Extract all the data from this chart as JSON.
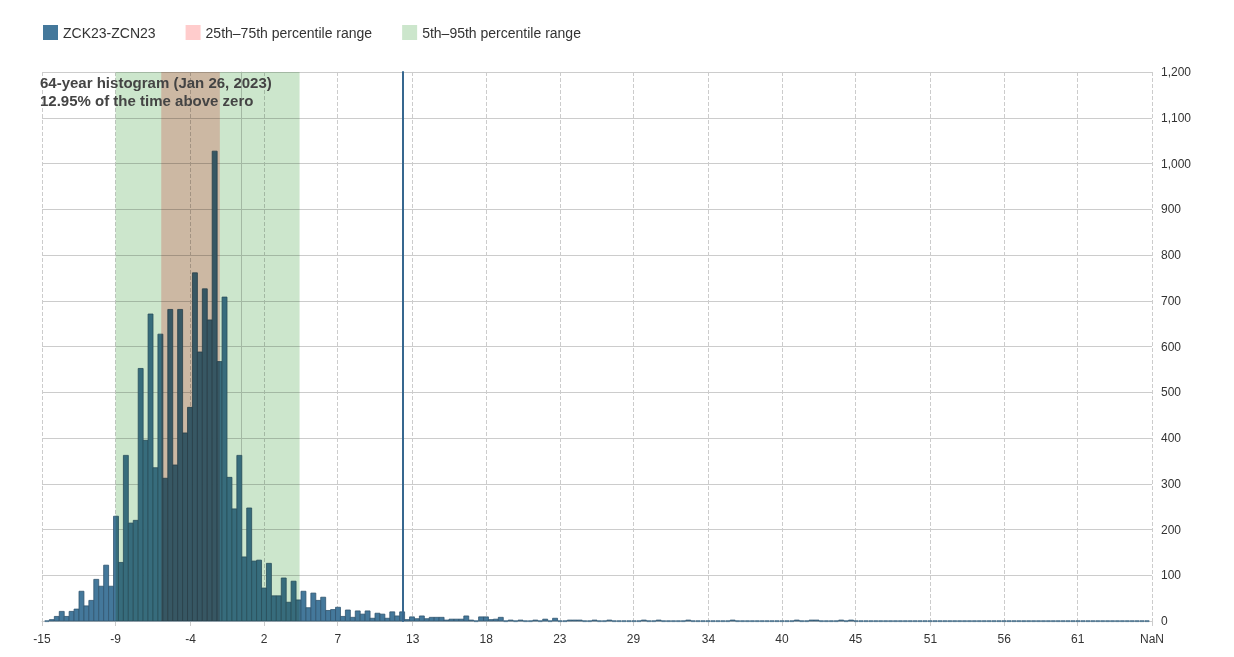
{
  "chart_data": {
    "type": "histogram",
    "title": "64-year histogram (Jan 26, 2023)",
    "subtitle": "12.95% of the time above zero",
    "bins": [
      -14.419,
      -14.057,
      -13.695,
      -13.333,
      -12.971,
      -12.609,
      -12.247,
      -11.885,
      -11.523,
      -11.161,
      -10.799,
      -10.437,
      -10.075,
      -9.713,
      -9.351,
      -8.989,
      -8.627,
      -8.265,
      -7.903,
      -7.541,
      -7.179,
      -6.817,
      -6.455,
      -6.093,
      -5.731,
      -5.369,
      -5.007,
      -4.645,
      -4.283,
      -3.921,
      -3.559,
      -3.197,
      -2.835,
      -2.473,
      -2.111,
      -1.749,
      -1.387,
      -1.025,
      -0.663,
      -0.301,
      0.061,
      0.423,
      0.785,
      1.147,
      1.509,
      1.871,
      2.233,
      2.595,
      2.957,
      3.319,
      3.681,
      4.043,
      4.405,
      4.767,
      5.129,
      5.491,
      5.853,
      6.215,
      6.577,
      6.939,
      7.301,
      7.663,
      8.025,
      8.387,
      8.749,
      9.111,
      9.473,
      9.835,
      10.197,
      10.559,
      10.921,
      11.283,
      11.645,
      12.007,
      12.369,
      12.731,
      13.093,
      13.455,
      13.817,
      14.179,
      14.541,
      14.903,
      15.265,
      15.627,
      15.989,
      16.351,
      16.713,
      17.075,
      17.437,
      17.799,
      18.161,
      18.523,
      18.885,
      19.247,
      19.609,
      19.971,
      20.333,
      20.695,
      21.057,
      21.419,
      21.781,
      22.143,
      22.505,
      22.867,
      23.229,
      23.591,
      23.953,
      24.315,
      24.677,
      25.039,
      25.401,
      25.763,
      26.125,
      26.487,
      26.849,
      27.211,
      27.573,
      27.935,
      28.297,
      28.659,
      29.021,
      29.383,
      29.745,
      30.107,
      30.469,
      30.831,
      31.193,
      31.555,
      31.917,
      32.279,
      32.641,
      33.003,
      33.365,
      33.727,
      34.089,
      34.451,
      34.813,
      35.175,
      35.537,
      35.899,
      36.261,
      36.623,
      36.985,
      37.347,
      37.709,
      38.071,
      38.433,
      38.795,
      39.157,
      39.519,
      39.881,
      40.243,
      40.605,
      40.967,
      41.329,
      41.691,
      42.053,
      42.415,
      42.777,
      43.139,
      43.501,
      43.863,
      44.225,
      44.587,
      44.949,
      45.311,
      45.673,
      46.035,
      46.397,
      46.759,
      47.121,
      47.483,
      47.845,
      48.207,
      48.569,
      48.931,
      49.293,
      49.655,
      50.017,
      50.379,
      50.741,
      51.103,
      51.465,
      51.827,
      52.189,
      52.551,
      52.913,
      53.275,
      53.637,
      53.999,
      54.361,
      54.723,
      55.085,
      55.447,
      55.809,
      56.171,
      56.533,
      56.895,
      57.257,
      57.619,
      57.981,
      58.343,
      58.705,
      59.067,
      59.429,
      59.791,
      60.153,
      60.515,
      60.877,
      61.239,
      61.601,
      61.963,
      62.325,
      62.687,
      63.049,
      63.411,
      63.773,
      64.135,
      64.497,
      64.859,
      65.221,
      65.583,
      65.945,
      66.307,
      66.669
    ],
    "series": [
      {
        "name": "ZCK23-ZCN23",
        "color": "#44789b",
        "values": [
          0,
          3,
          10,
          21,
          10,
          21,
          26,
          65,
          33,
          45,
          91,
          76,
          122,
          76,
          229,
          128,
          362,
          214,
          220,
          552,
          395,
          671,
          335,
          627,
          312,
          681,
          341,
          681,
          411,
          467,
          761,
          588,
          726,
          658,
          1027,
          567,
          708,
          314,
          245,
          362,
          140,
          247,
          131,
          133,
          72,
          126,
          55,
          55,
          94,
          41,
          87,
          46,
          65,
          29,
          61,
          45,
          52,
          23,
          25,
          30,
          10,
          24,
          8,
          22,
          15,
          22,
          6,
          17,
          15,
          6,
          20,
          11,
          20,
          3,
          9,
          5,
          11,
          5,
          8,
          8,
          8,
          2,
          4,
          4,
          4,
          11,
          2,
          0,
          9,
          9,
          3,
          4,
          8,
          0,
          2,
          0,
          2,
          0,
          0,
          2,
          0,
          4,
          0,
          6,
          0,
          0,
          2,
          2,
          2,
          0,
          0,
          2,
          0,
          0,
          2,
          0,
          0,
          0,
          0,
          0,
          0,
          2,
          0,
          0,
          2,
          0,
          0,
          0,
          0,
          0,
          2,
          0,
          0,
          0,
          0,
          0,
          0,
          0,
          0,
          2,
          0,
          0,
          0,
          0,
          0,
          0,
          0,
          0,
          0,
          0,
          0,
          0,
          2,
          0,
          0,
          2,
          2,
          0,
          0,
          0,
          0,
          2,
          0,
          2,
          0,
          0,
          0,
          0,
          0,
          0,
          0,
          0,
          0,
          0,
          0,
          0,
          0,
          0,
          0,
          0,
          0,
          0,
          0,
          0,
          0,
          0,
          0,
          0,
          0,
          0,
          0,
          0,
          0,
          0,
          0,
          0,
          0,
          0,
          0,
          0,
          0,
          0,
          0,
          0,
          0,
          0,
          0,
          0,
          0,
          0,
          0,
          0,
          0,
          0,
          0,
          0,
          0,
          0,
          0,
          0,
          0,
          0,
          0,
          0
        ]
      }
    ],
    "xlim": [
      -14.6,
      66.85
    ],
    "xticks": [
      {
        "value": -14.6,
        "label": "-15"
      },
      {
        "value": -9.2,
        "label": "-9"
      },
      {
        "value": -3.7,
        "label": "-4"
      },
      {
        "value": 1.7,
        "label": "2"
      },
      {
        "value": 7.1,
        "label": "7"
      },
      {
        "value": 12.6,
        "label": "13"
      },
      18,
      {
        "value": 23.4,
        "label": "23"
      },
      {
        "value": 28.8,
        "label": "29"
      },
      {
        "value": 34.3,
        "label": "34"
      },
      {
        "value": 39.7,
        "label": "40"
      },
      {
        "value": 45.1,
        "label": "45"
      },
      {
        "value": 50.6,
        "label": "51"
      },
      56,
      {
        "value": 61.4,
        "label": "61"
      },
      {
        "value": 66.85,
        "label": "NaN"
      }
    ],
    "ylim": [
      0,
      1200
    ],
    "yticks": [
      0,
      100,
      200,
      300,
      400,
      500,
      600,
      700,
      800,
      900,
      {
        "value": 1000,
        "label": "1,000"
      },
      {
        "value": 1100,
        "label": "1,100"
      },
      {
        "value": 1200,
        "label": "1,200"
      }
    ],
    "grid": true,
    "legend": "top left",
    "bands": [
      {
        "axis": "x",
        "from": -5.85,
        "to": -1.55,
        "label": "25th–75th percentile range",
        "color": "#ffcccc"
      },
      {
        "axis": "x",
        "from": -9.2,
        "to": 4.3,
        "label": "5th–95th percentile range",
        "color": "#cce6cc"
      }
    ],
    "ref_lines": [
      {
        "axis": "x",
        "value": 11.9,
        "color": "#36678f"
      }
    ]
  }
}
